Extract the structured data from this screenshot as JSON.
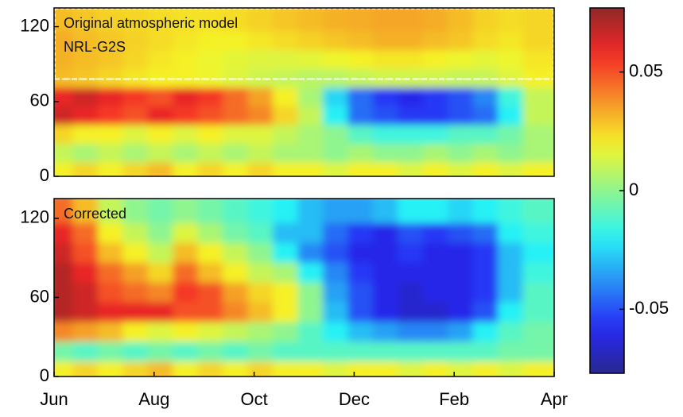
{
  "chart_data": [
    {
      "type": "heatmap",
      "annotations": [
        "Original atmospheric model",
        "NRL-G2S"
      ],
      "reference_line": 78,
      "ylim": [
        0,
        135
      ],
      "yticks": [
        0,
        60,
        120
      ],
      "ybins": [
        0,
        15,
        30,
        45,
        60,
        75,
        90,
        105,
        120,
        135
      ],
      "values": [
        [
          0.02,
          0.025,
          0.02,
          0.025,
          0.03,
          0.02,
          0.025,
          0.02,
          0.025,
          0.02,
          0.02,
          0.015,
          0.02,
          0.02,
          0.015,
          0.02,
          0.015,
          0.02,
          0.015,
          0.02
        ],
        [
          0.01,
          0.005,
          0.01,
          0.005,
          0.01,
          0.005,
          0.01,
          0.005,
          0.01,
          0.005,
          0.005,
          0,
          0.005,
          0,
          0,
          0.005,
          0,
          0.005,
          0,
          0.005
        ],
        [
          0.025,
          0.02,
          0.02,
          0.015,
          0.02,
          0.015,
          0.02,
          0.015,
          0.015,
          0.01,
          0.005,
          0,
          -0.01,
          -0.015,
          -0.015,
          -0.015,
          -0.01,
          -0.01,
          -0.005,
          0.005
        ],
        [
          0.065,
          0.06,
          0.055,
          0.05,
          0.06,
          0.055,
          0.05,
          0.045,
          0.04,
          0.025,
          0.01,
          -0.02,
          -0.045,
          -0.05,
          -0.055,
          -0.055,
          -0.05,
          -0.045,
          -0.02,
          0.01
        ],
        [
          0.06,
          0.065,
          0.06,
          0.055,
          0.05,
          0.06,
          0.055,
          0.045,
          0.035,
          0.02,
          0.005,
          -0.025,
          -0.045,
          -0.055,
          -0.06,
          -0.055,
          -0.05,
          -0.04,
          -0.015,
          0.01
        ],
        [
          0.03,
          0.028,
          0.025,
          0.022,
          0.02,
          0.02,
          0.018,
          0.015,
          0.012,
          0.01,
          0.008,
          0.008,
          0.01,
          0.012,
          0.012,
          0.012,
          0.01,
          0.01,
          0.015,
          0.02
        ],
        [
          0.032,
          0.03,
          0.028,
          0.025,
          0.022,
          0.02,
          0.018,
          0.016,
          0.015,
          0.015,
          0.016,
          0.018,
          0.02,
          0.022,
          0.022,
          0.02,
          0.018,
          0.016,
          0.018,
          0.022
        ],
        [
          0.033,
          0.03,
          0.028,
          0.026,
          0.024,
          0.022,
          0.02,
          0.02,
          0.022,
          0.024,
          0.026,
          0.028,
          0.03,
          0.032,
          0.032,
          0.03,
          0.028,
          0.024,
          0.022,
          0.025
        ],
        [
          0.03,
          0.028,
          0.026,
          0.025,
          0.024,
          0.023,
          0.023,
          0.024,
          0.026,
          0.028,
          0.03,
          0.032,
          0.033,
          0.034,
          0.034,
          0.033,
          0.03,
          0.026,
          0.024,
          0.025
        ]
      ]
    },
    {
      "type": "heatmap",
      "annotations": [
        "Corrected"
      ],
      "categories": [
        "Jun",
        "Aug",
        "Oct",
        "Dec",
        "Feb",
        "Apr"
      ],
      "ylim": [
        0,
        135
      ],
      "yticks": [
        0,
        60,
        120
      ],
      "ybins": [
        0,
        15,
        30,
        45,
        60,
        75,
        90,
        105,
        120,
        135
      ],
      "values": [
        [
          0.02,
          0.025,
          0.02,
          0.025,
          0.03,
          0.02,
          0.025,
          0.02,
          0.025,
          0.02,
          0.02,
          0.015,
          0.02,
          0.02,
          0.015,
          0.02,
          0.015,
          0.02,
          0.015,
          0.02
        ],
        [
          -0.005,
          -0.01,
          -0.005,
          -0.01,
          -0.005,
          -0.01,
          -0.005,
          -0.01,
          -0.005,
          -0.01,
          -0.01,
          -0.01,
          -0.01,
          -0.01,
          -0.01,
          -0.01,
          -0.01,
          -0.01,
          -0.005,
          -0.005
        ],
        [
          0.04,
          0.035,
          0.03,
          0.02,
          0.015,
          0.02,
          0.015,
          0.01,
          0.005,
          0,
          -0.01,
          -0.02,
          -0.03,
          -0.035,
          -0.04,
          -0.04,
          -0.035,
          -0.02,
          -0.01,
          -0.005
        ],
        [
          0.07,
          0.065,
          0.06,
          0.06,
          0.06,
          0.05,
          0.05,
          0.04,
          0.03,
          0.02,
          0,
          -0.03,
          -0.05,
          -0.06,
          -0.065,
          -0.065,
          -0.06,
          -0.05,
          -0.02,
          -0.01
        ],
        [
          0.07,
          0.065,
          0.05,
          0.045,
          0.04,
          0.055,
          0.05,
          0.035,
          0.025,
          0.02,
          0,
          -0.035,
          -0.05,
          -0.06,
          -0.065,
          -0.06,
          -0.06,
          -0.055,
          -0.03,
          -0.01
        ],
        [
          0.07,
          0.06,
          0.045,
          0.035,
          0.025,
          0.045,
          0.03,
          0.02,
          0.01,
          0.005,
          -0.02,
          -0.04,
          -0.055,
          -0.06,
          -0.06,
          -0.06,
          -0.06,
          -0.055,
          -0.03,
          -0.015
        ],
        [
          0.065,
          0.05,
          0.03,
          0.02,
          0.01,
          0.03,
          0.02,
          0.01,
          0,
          -0.02,
          -0.04,
          -0.05,
          -0.06,
          -0.06,
          -0.055,
          -0.06,
          -0.06,
          -0.055,
          -0.03,
          -0.02
        ],
        [
          0.06,
          0.045,
          0.02,
          0.01,
          0,
          0.015,
          0.005,
          -0.005,
          -0.01,
          -0.03,
          -0.03,
          -0.045,
          -0.055,
          -0.06,
          -0.05,
          -0.055,
          -0.05,
          -0.045,
          -0.02,
          -0.015
        ],
        [
          0.045,
          0.03,
          0.01,
          0,
          -0.005,
          0,
          -0.005,
          -0.01,
          -0.015,
          -0.02,
          -0.03,
          -0.035,
          -0.035,
          -0.03,
          -0.02,
          -0.02,
          -0.025,
          -0.02,
          -0.015,
          -0.01
        ]
      ]
    }
  ],
  "colorbar": {
    "colormap": "jet",
    "lim": [
      -0.077,
      0.077
    ],
    "ticks": [
      0.05,
      0,
      -0.05
    ]
  }
}
